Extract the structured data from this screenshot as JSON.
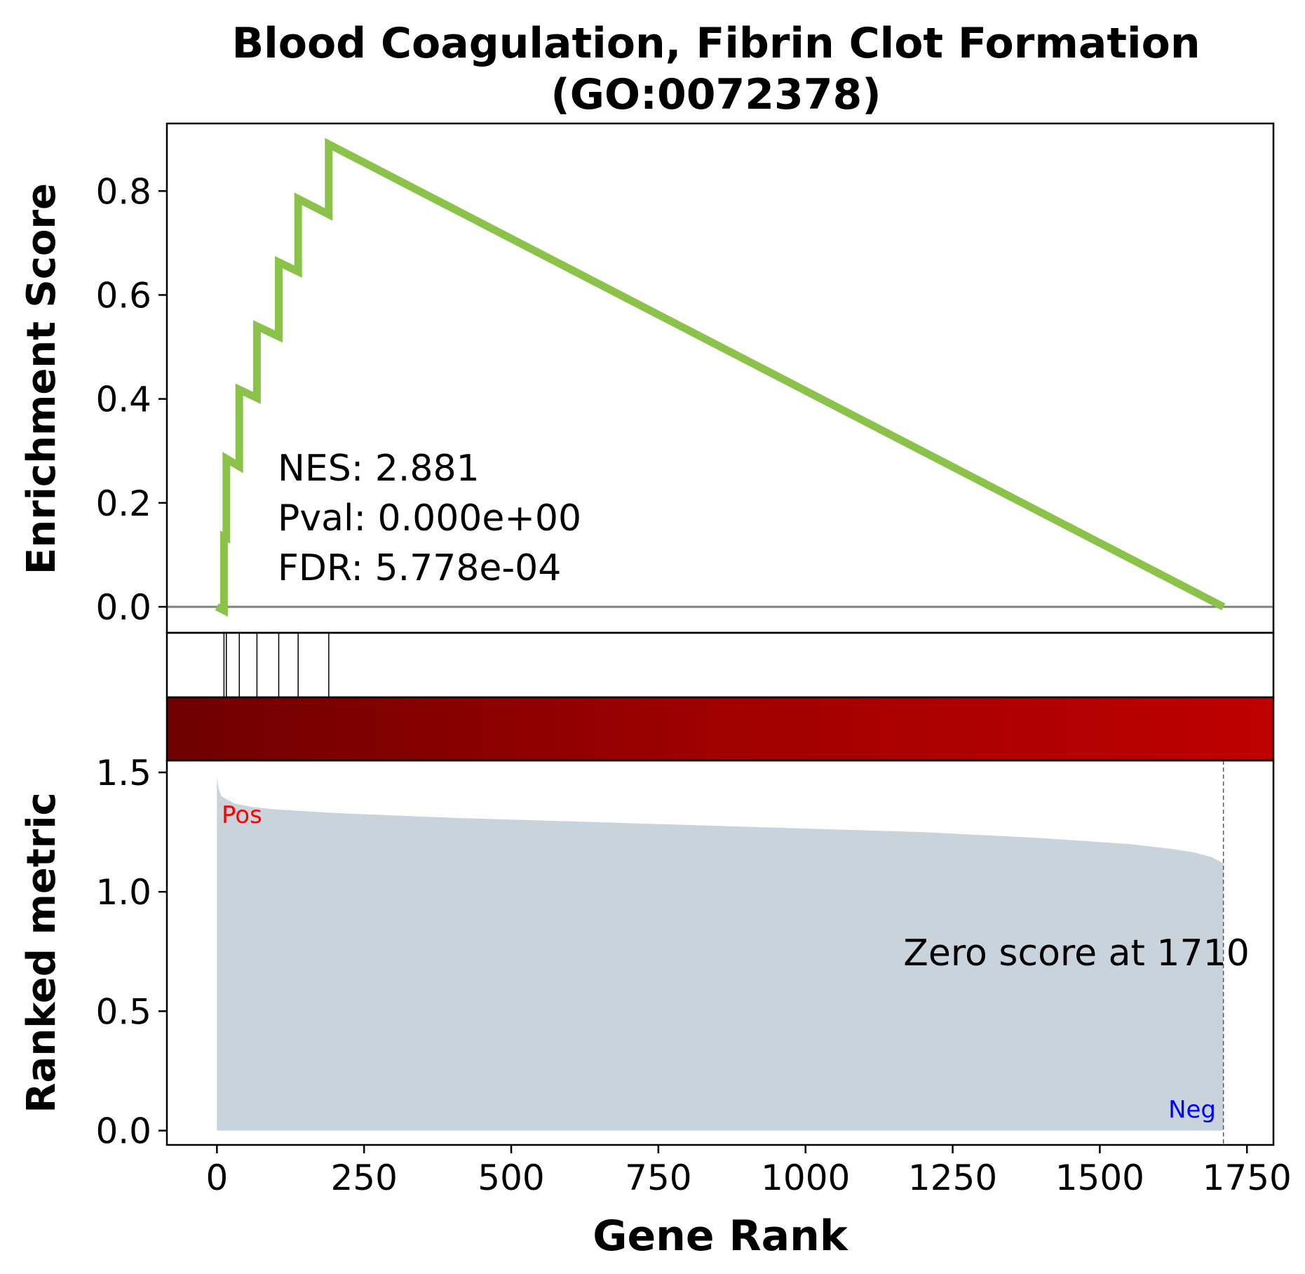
{
  "title": {
    "line1": "Blood Coagulation, Fibrin Clot Formation",
    "line2": "(GO:0072378)"
  },
  "stats": {
    "nes": "NES: 2.881",
    "pval": "Pval: 0.000e+00",
    "fdr": "FDR: 5.778e-04"
  },
  "labels": {
    "pos": "Pos",
    "neg": "Neg",
    "zero_score": "Zero score at 1710"
  },
  "colors": {
    "es_line": "#8BC34A",
    "metric_fill": "#C9D3DC",
    "zero_line": "#808080",
    "pos_label": "#FF0000",
    "neg_label": "#0000FF",
    "heat_start": "#6E0000",
    "heat_mid": "#A00000",
    "heat_end": "#BE0000"
  },
  "chart_data": {
    "type": "line",
    "xlabel": "Gene Rank",
    "xlim": [
      -85,
      1795
    ],
    "xticks": [
      0,
      250,
      500,
      750,
      1000,
      1250,
      1500,
      1750
    ],
    "panels": {
      "enrichment": {
        "ylabel": "Enrichment Score",
        "ylim": [
          -0.05,
          0.93
        ],
        "yticks": [
          0.0,
          0.2,
          0.4,
          0.6,
          0.8
        ],
        "yticklabels": [
          "0.0",
          "0.2",
          "0.4",
          "0.6",
          "0.8"
        ],
        "hits": [
          12,
          16,
          38,
          68,
          105,
          138,
          190
        ],
        "running_es": {
          "x": [
            0,
            12,
            12,
            16,
            16,
            38,
            38,
            68,
            68,
            105,
            105,
            138,
            138,
            190,
            190,
            1710
          ],
          "y": [
            0.0,
            -0.007,
            0.135,
            0.133,
            0.285,
            0.27,
            0.418,
            0.402,
            0.54,
            0.52,
            0.663,
            0.645,
            0.785,
            0.755,
            0.89,
            0.0
          ]
        }
      },
      "ranked_metric": {
        "ylabel": "Ranked metric",
        "ylim": [
          -0.06,
          1.55
        ],
        "yticks": [
          0.0,
          0.5,
          1.0,
          1.5
        ],
        "yticklabels": [
          "0.0",
          "0.5",
          "1.0",
          "1.5"
        ],
        "zero_cross_rank": 1710,
        "values": {
          "x": [
            0,
            3,
            8,
            15,
            30,
            60,
            100,
            200,
            400,
            600,
            800,
            1000,
            1200,
            1400,
            1550,
            1620,
            1660,
            1690,
            1710
          ],
          "y": [
            1.48,
            1.43,
            1.4,
            1.39,
            1.37,
            1.355,
            1.345,
            1.33,
            1.31,
            1.295,
            1.28,
            1.265,
            1.25,
            1.225,
            1.2,
            1.18,
            1.165,
            1.145,
            1.12
          ]
        }
      }
    }
  }
}
